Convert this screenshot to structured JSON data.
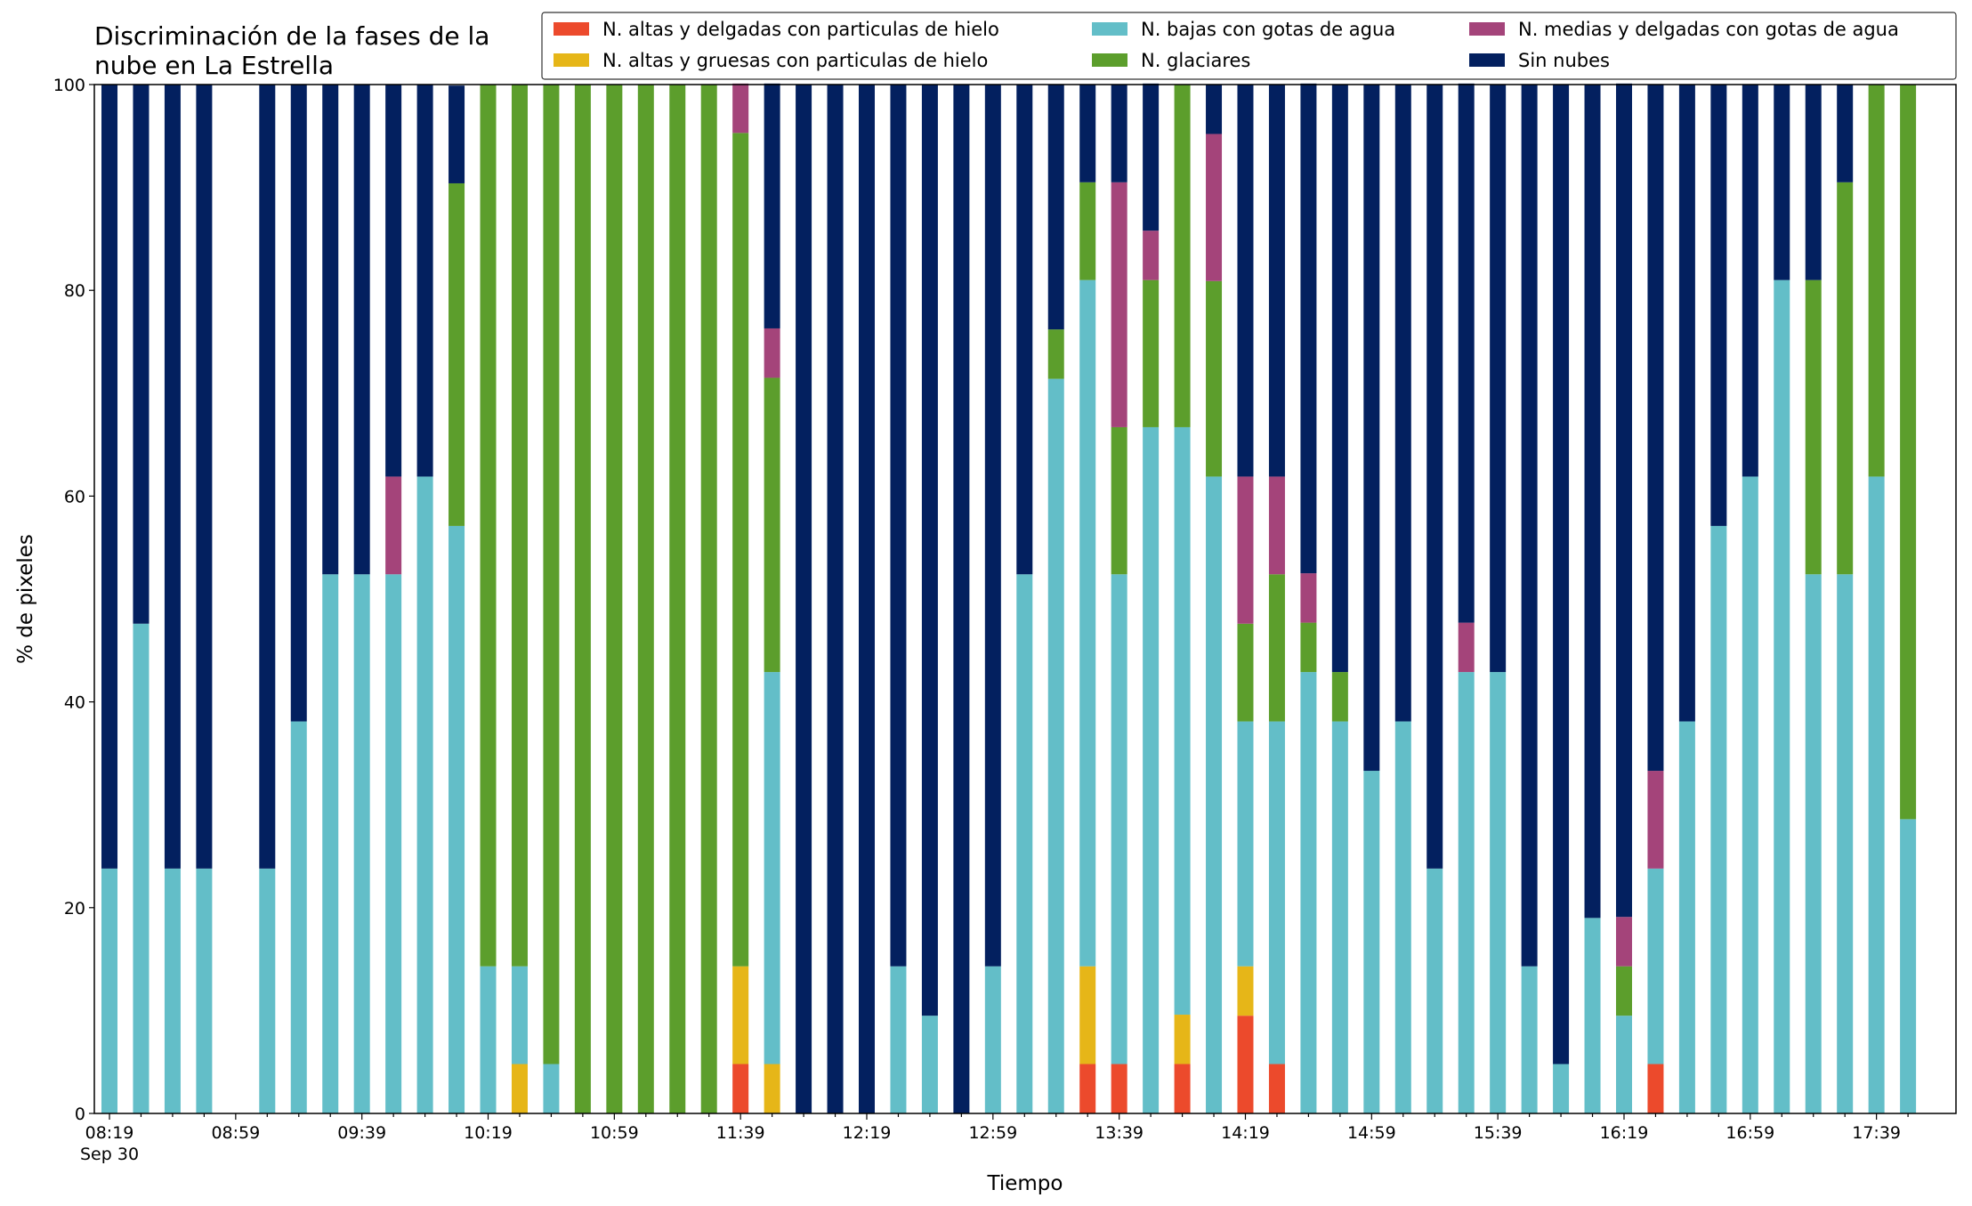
{
  "chart_data": {
    "type": "stacked_bar",
    "title": [
      "Discriminación de la fases de la",
      "nube en La Estrella"
    ],
    "xlabel": "Tiempo",
    "ylabel": "% de pixeles",
    "x_sublabel": "Sep 30",
    "categories": [
      "08:19",
      null,
      null,
      null,
      "08:59",
      null,
      null,
      null,
      "09:39",
      null,
      null,
      null,
      "10:19",
      null,
      null,
      null,
      "10:59",
      null,
      null,
      null,
      "11:39",
      null,
      null,
      null,
      "12:19",
      null,
      null,
      null,
      "12:59",
      null,
      null,
      null,
      "13:39",
      null,
      null,
      null,
      "14:19",
      null,
      null,
      null,
      "14:59",
      null,
      null,
      null,
      "15:39",
      null,
      null,
      null,
      "16:19",
      null,
      null,
      null,
      "16:59",
      null,
      null,
      null,
      "17:39",
      null
    ],
    "ylim": [
      0,
      100
    ],
    "yticks": [
      0,
      20,
      40,
      60,
      80,
      100
    ],
    "legend": "top-right",
    "series": [
      {
        "name": "N. altas y delgadas con particulas de hielo",
        "color": "#ec4a2c",
        "values": [
          null,
          null,
          null,
          null,
          null,
          null,
          null,
          null,
          null,
          null,
          null,
          null,
          null,
          null,
          null,
          null,
          null,
          null,
          null,
          null,
          4.8,
          null,
          null,
          null,
          null,
          null,
          null,
          null,
          null,
          null,
          null,
          4.8,
          4.8,
          null,
          4.8,
          null,
          9.5,
          4.8,
          null,
          null,
          null,
          null,
          null,
          null,
          null,
          null,
          null,
          null,
          null,
          4.8,
          null,
          null,
          null,
          null,
          null,
          null,
          null,
          null
        ]
      },
      {
        "name": "N. altas y gruesas con particulas de hielo",
        "color": "#e6b618",
        "values": [
          null,
          null,
          null,
          null,
          null,
          null,
          null,
          null,
          null,
          null,
          null,
          null,
          null,
          4.8,
          null,
          null,
          null,
          null,
          null,
          null,
          9.5,
          4.8,
          null,
          null,
          null,
          null,
          null,
          null,
          null,
          null,
          null,
          9.5,
          null,
          null,
          4.8,
          null,
          4.8,
          null,
          null,
          null,
          null,
          null,
          null,
          null,
          null,
          null,
          null,
          null,
          null,
          null,
          null,
          null,
          null,
          null,
          null,
          null,
          null,
          null
        ]
      },
      {
        "name": "N. bajas con gotas de agua",
        "color": "#63bec8",
        "values": [
          23.8,
          47.6,
          23.8,
          23.8,
          null,
          23.8,
          38.1,
          52.4,
          52.4,
          52.4,
          61.9,
          57.1,
          14.3,
          9.5,
          4.8,
          null,
          null,
          null,
          null,
          null,
          null,
          38.1,
          null,
          null,
          null,
          14.3,
          9.5,
          null,
          14.3,
          52.4,
          71.4,
          66.7,
          47.6,
          66.7,
          57.1,
          61.9,
          23.8,
          33.3,
          42.9,
          38.1,
          33.3,
          38.1,
          23.8,
          42.9,
          42.9,
          14.3,
          4.8,
          19.0,
          9.5,
          19.0,
          38.1,
          57.1,
          61.9,
          81.0,
          52.4,
          52.4,
          61.9,
          28.6
        ]
      },
      {
        "name": "N. glaciares",
        "color": "#5c9e2c",
        "values": [
          null,
          null,
          null,
          null,
          null,
          null,
          null,
          null,
          null,
          null,
          null,
          33.3,
          85.7,
          85.7,
          95.2,
          100,
          100,
          100,
          100,
          100,
          81.0,
          28.6,
          null,
          null,
          null,
          null,
          null,
          null,
          null,
          null,
          4.8,
          9.5,
          14.3,
          14.3,
          33.3,
          19.0,
          9.5,
          14.3,
          4.8,
          4.8,
          null,
          null,
          null,
          null,
          null,
          null,
          null,
          null,
          4.8,
          null,
          null,
          null,
          null,
          null,
          28.6,
          38.1,
          38.1,
          71.4
        ]
      },
      {
        "name": "N. medias y delgadas con gotas de agua",
        "color": "#a4447a",
        "values": [
          null,
          null,
          null,
          null,
          null,
          null,
          null,
          null,
          null,
          9.5,
          null,
          null,
          null,
          null,
          null,
          null,
          null,
          null,
          null,
          null,
          4.8,
          4.8,
          null,
          null,
          null,
          null,
          null,
          null,
          null,
          null,
          null,
          null,
          23.8,
          4.8,
          null,
          14.3,
          14.3,
          9.5,
          4.8,
          null,
          null,
          null,
          null,
          4.8,
          null,
          null,
          null,
          null,
          4.8,
          9.5,
          null,
          null,
          null,
          null,
          null,
          null,
          null,
          null
        ]
      },
      {
        "name": "Sin nubes",
        "color": "#03205f",
        "values": [
          76.2,
          52.4,
          76.2,
          76.2,
          null,
          76.2,
          61.9,
          47.6,
          47.6,
          38.1,
          38.1,
          9.5,
          null,
          null,
          null,
          null,
          null,
          null,
          null,
          null,
          null,
          23.8,
          100,
          100,
          100,
          85.7,
          90.5,
          100,
          85.7,
          47.6,
          23.8,
          9.5,
          9.5,
          14.3,
          null,
          4.8,
          38.1,
          38.1,
          47.6,
          57.1,
          66.7,
          61.9,
          76.2,
          52.4,
          57.1,
          85.7,
          95.2,
          81.0,
          81.0,
          66.7,
          61.9,
          42.9,
          38.1,
          19.0,
          19.0,
          9.5,
          null,
          null
        ]
      }
    ]
  }
}
